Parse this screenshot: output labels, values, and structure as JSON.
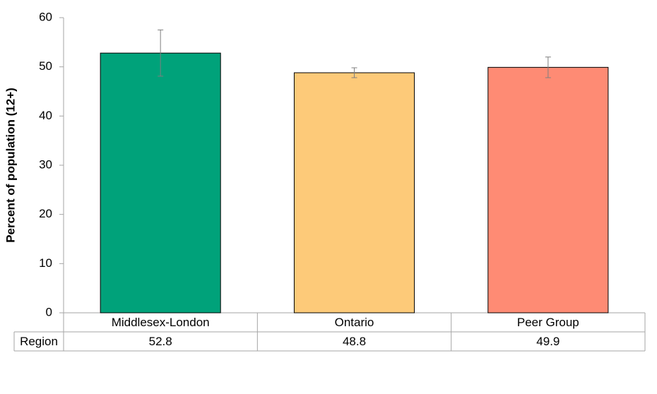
{
  "chart_data": {
    "type": "bar",
    "y_label": "Percent of population (12+)",
    "categories": [
      "Middlesex-London",
      "Ontario",
      "Peer Group"
    ],
    "series": [
      {
        "name": "Region",
        "values": [
          52.8,
          48.8,
          49.9
        ],
        "errors": [
          4.7,
          1.0,
          2.1
        ],
        "colors": [
          "#00a27a",
          "#fdca79",
          "#fe8b74"
        ]
      }
    ],
    "ylim": [
      0,
      60
    ],
    "yticks": [
      0,
      10,
      20,
      30,
      40,
      50,
      60
    ],
    "grid": false
  }
}
